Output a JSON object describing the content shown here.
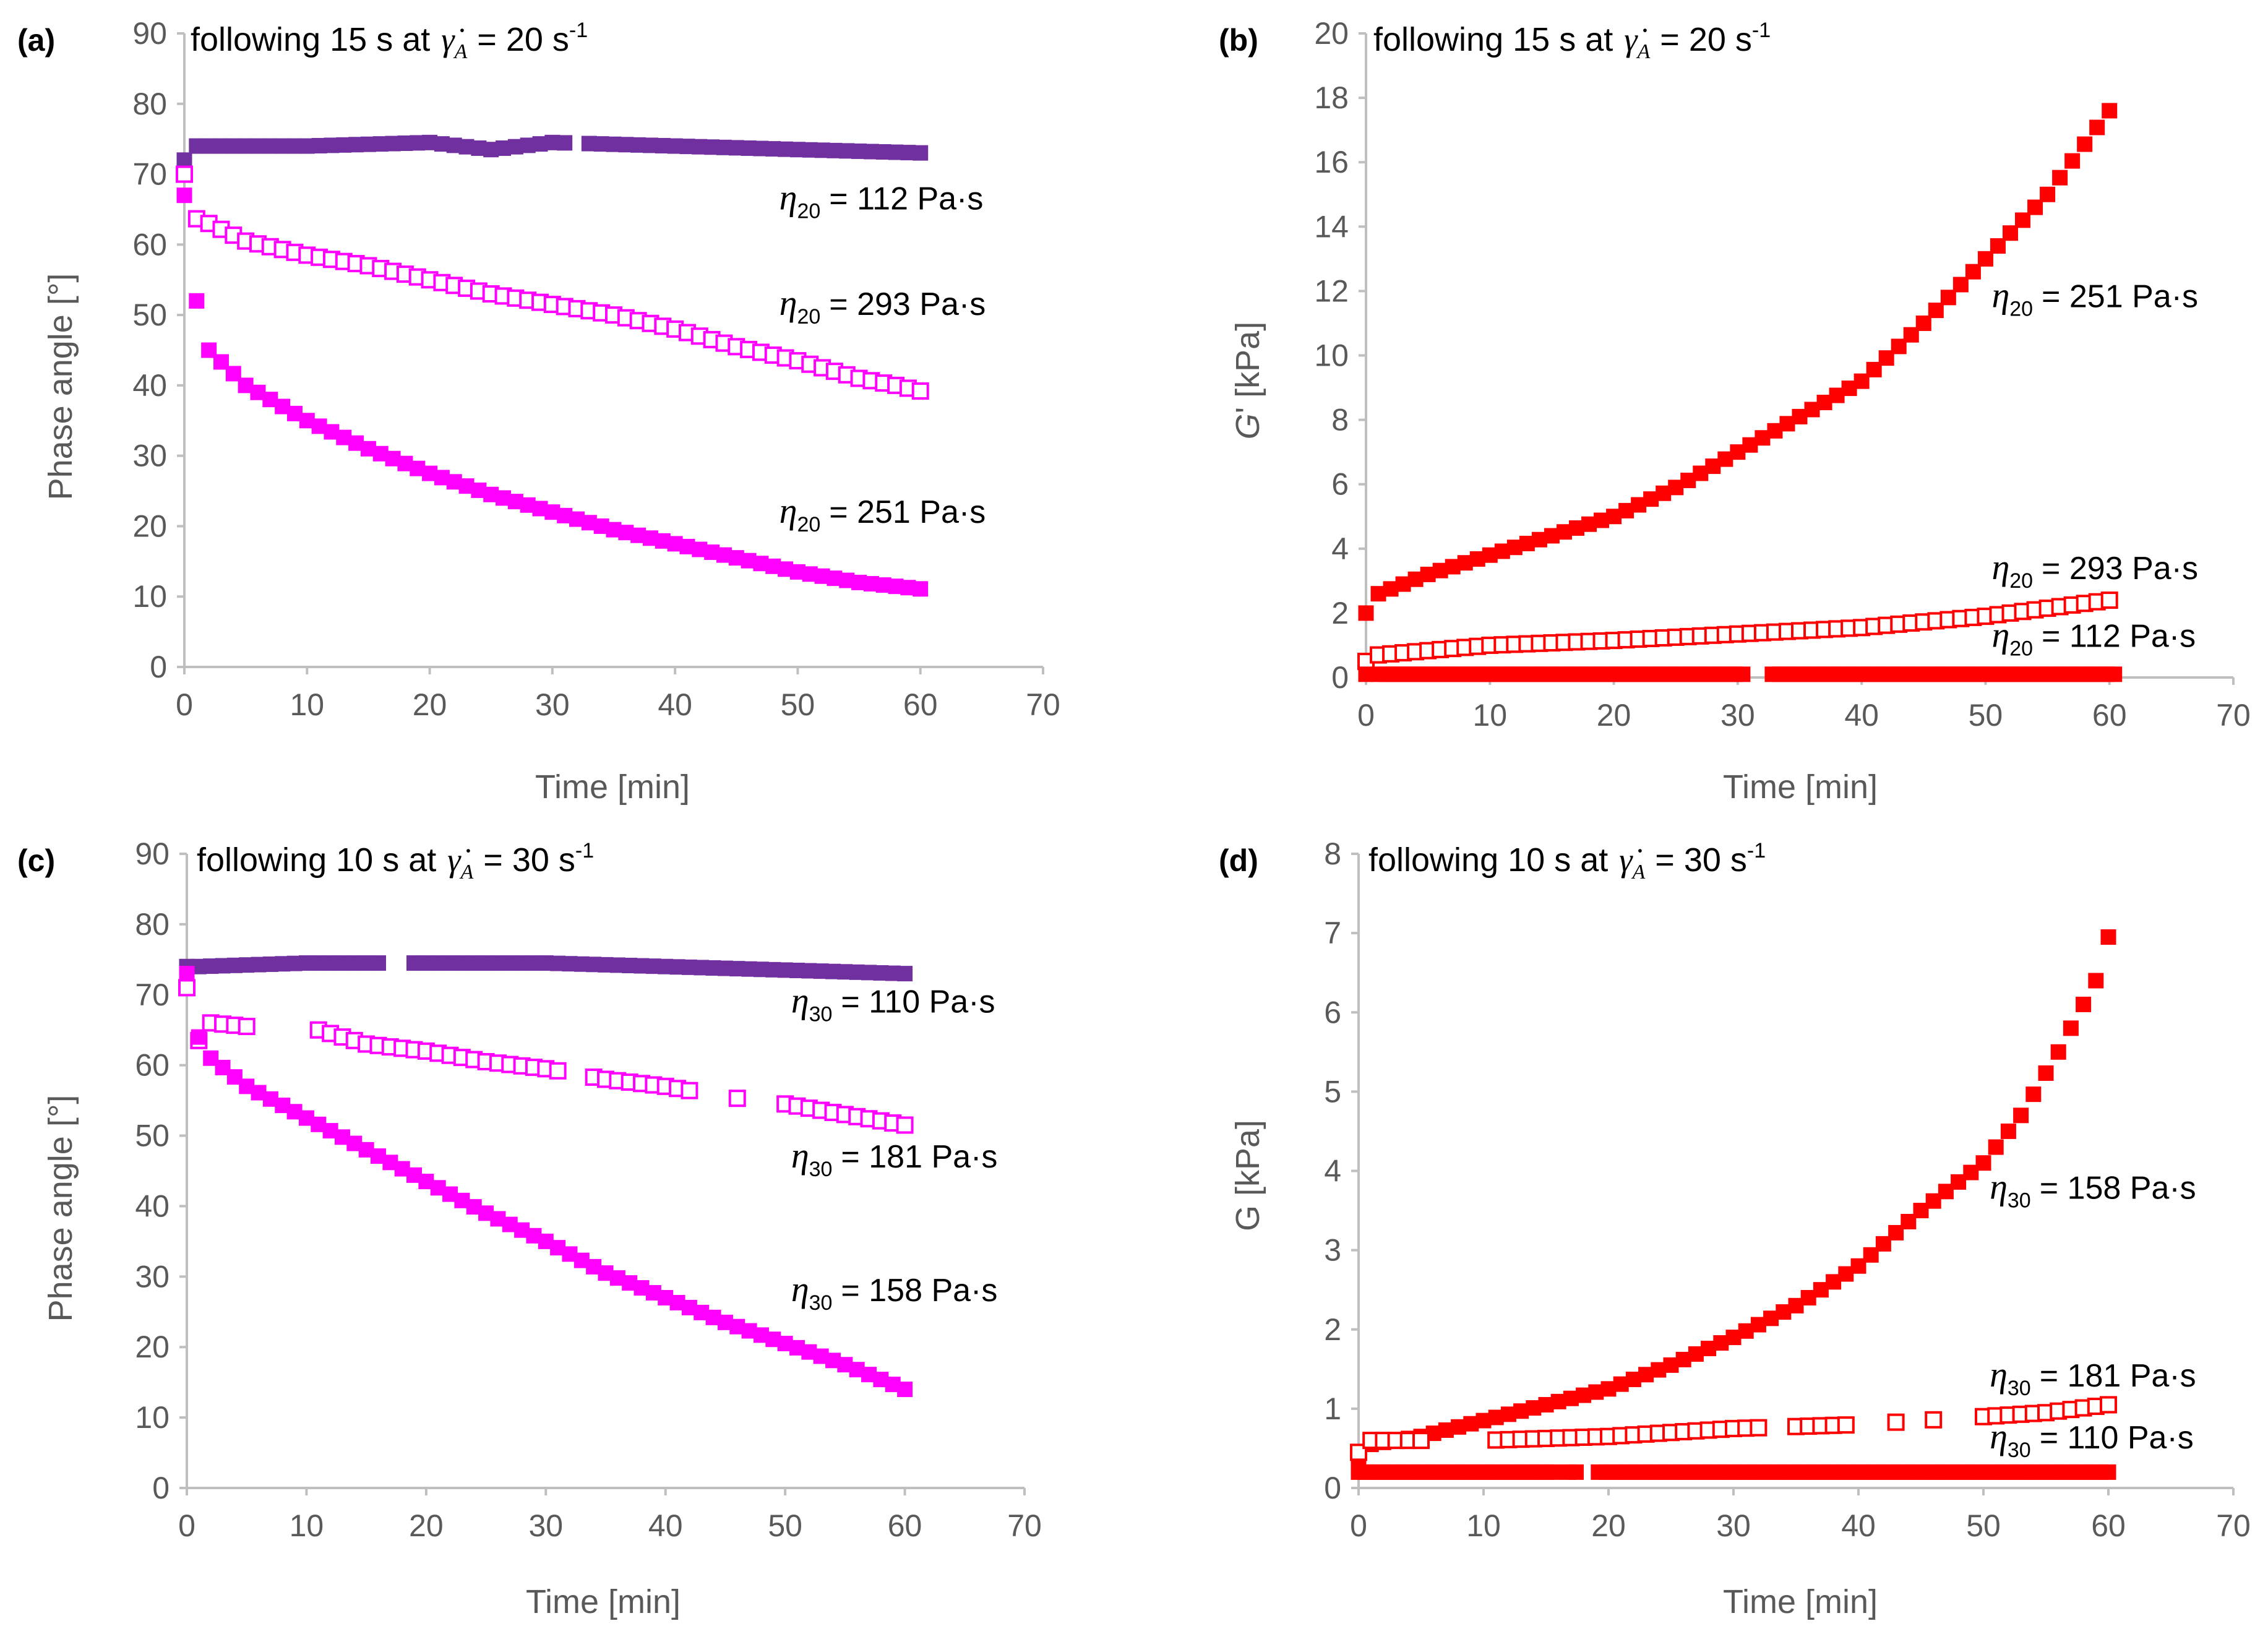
{
  "figure": {
    "panels": [
      {
        "letter": "(a)",
        "title_pre": "following 15 s at",
        "title_post": "= 20 s",
        "title_sup": "-1"
      },
      {
        "letter": "(b)",
        "title_pre": "following 15 s at",
        "title_post": "=  20 s",
        "title_sup": "-1"
      },
      {
        "letter": "(c)",
        "title_pre": "following 10 s at",
        "title_post": "=  30 s",
        "title_sup": "-1"
      },
      {
        "letter": "(d)",
        "title_pre": "following 10 s at",
        "title_post": "=  30 s",
        "title_sup": "-1"
      }
    ]
  },
  "colors": {
    "purple": "#7030a0",
    "magenta": "#ff00ff",
    "red": "#ff0000"
  },
  "chart_data": [
    {
      "type": "scatter",
      "panel": "(a)",
      "title": "following 15 s at γ̇A = 20 s-1",
      "xlabel": "Time [min]",
      "ylabel": "Phase angle [°]",
      "xlim": [
        0,
        70
      ],
      "xticks": [
        0,
        10,
        20,
        30,
        40,
        50,
        60,
        70
      ],
      "ylim": [
        0,
        90
      ],
      "yticks": [
        0,
        10,
        20,
        30,
        40,
        50,
        60,
        70,
        80,
        90
      ],
      "series": [
        {
          "name": "η20 = 112 Pa·s",
          "sub": "20",
          "value": "= 112 Pa·s",
          "color": "#7030a0",
          "filled": true,
          "x0": 0,
          "x1": 60.5,
          "step": 1,
          "points": [
            [
              0,
              72
            ],
            [
              1,
              74
            ],
            [
              10,
              74
            ],
            [
              20,
              74.5
            ],
            [
              25,
              73.5
            ],
            [
              30,
              74.5
            ],
            [
              40,
              74
            ],
            [
              50,
              73.5
            ],
            [
              60.5,
              73
            ]
          ],
          "gaps": [
            [
              31,
              33
            ],
            [
              38.5,
              39
            ]
          ]
        },
        {
          "name": "η20 = 293 Pa·s",
          "sub": "20",
          "value": "= 293 Pa·s",
          "color": "#ff00ff",
          "filled": false,
          "x0": 0,
          "x1": 60.5,
          "step": 1,
          "points": [
            [
              0,
              70
            ],
            [
              0.5,
              64
            ],
            [
              2,
              63
            ],
            [
              5,
              60.5
            ],
            [
              10,
              58.5
            ],
            [
              15,
              57
            ],
            [
              20,
              55
            ],
            [
              25,
              53
            ],
            [
              30,
              51.5
            ],
            [
              35,
              50
            ],
            [
              40,
              48
            ],
            [
              45,
              45.5
            ],
            [
              50,
              43.5
            ],
            [
              55,
              41
            ],
            [
              58,
              40
            ],
            [
              60.5,
              39
            ]
          ],
          "gaps": []
        },
        {
          "name": "η20 = 251 Pa·s",
          "sub": "20",
          "value": "= 251 Pa·s",
          "color": "#ff00ff",
          "filled": true,
          "x0": 1,
          "x1": 60.5,
          "step": 1,
          "points": [
            [
              0,
              67
            ],
            [
              1,
              52
            ],
            [
              2,
              45
            ],
            [
              5,
              40
            ],
            [
              10,
              35
            ],
            [
              15,
              31
            ],
            [
              20,
              27.5
            ],
            [
              25,
              24.5
            ],
            [
              30,
              22
            ],
            [
              35,
              19.5
            ],
            [
              40,
              17.5
            ],
            [
              45,
              15.5
            ],
            [
              50,
              13.5
            ],
            [
              55,
              12
            ],
            [
              60.5,
              11
            ]
          ],
          "gaps": [
            [
              1.2,
              1.8
            ]
          ]
        }
      ],
      "annotations": [
        {
          "series": 0,
          "x": 48.5,
          "y": 65
        },
        {
          "series": 1,
          "x": 48.5,
          "y": 50
        },
        {
          "series": 2,
          "x": 48.5,
          "y": 20.5
        }
      ]
    },
    {
      "type": "scatter",
      "panel": "(b)",
      "title": "following 15 s at γ̇A = 20 s-1",
      "xlabel": "Time [min]",
      "ylabel": "G' [kPa]",
      "xlim": [
        0,
        70
      ],
      "xticks": [
        0,
        10,
        20,
        30,
        40,
        50,
        60,
        70
      ],
      "ylim": [
        0,
        20
      ],
      "yticks": [
        0,
        2,
        4,
        6,
        8,
        10,
        12,
        14,
        16,
        18,
        20
      ],
      "series": [
        {
          "name": "η20 = 251 Pa·s",
          "sub": "20",
          "value": "= 251 Pa·s",
          "color": "#ff0000",
          "filled": true,
          "x0": 0,
          "x1": 60,
          "step": 1,
          "points": [
            [
              0,
              2
            ],
            [
              1,
              2.6
            ],
            [
              5,
              3.2
            ],
            [
              10,
              3.8
            ],
            [
              15,
              4.4
            ],
            [
              20,
              5
            ],
            [
              25,
              5.9
            ],
            [
              30,
              7
            ],
            [
              35,
              8.1
            ],
            [
              40,
              9.2
            ],
            [
              45,
              11
            ],
            [
              50,
              13
            ],
            [
              55,
              15
            ],
            [
              60,
              17.6
            ]
          ],
          "gaps": []
        },
        {
          "name": "η20 = 293 Pa·s",
          "sub": "20",
          "value": "= 293 Pa·s",
          "color": "#ff0000",
          "filled": false,
          "x0": 0,
          "x1": 60,
          "step": 1,
          "points": [
            [
              0,
              0.5
            ],
            [
              1,
              0.7
            ],
            [
              10,
              1
            ],
            [
              20,
              1.15
            ],
            [
              30,
              1.35
            ],
            [
              40,
              1.55
            ],
            [
              50,
              1.9
            ],
            [
              60,
              2.4
            ]
          ],
          "gaps": []
        },
        {
          "name": "η20 = 112 Pa·s",
          "sub": "20",
          "value": "= 112 Pa·s",
          "color": "#ff0000",
          "filled": true,
          "x0": 1,
          "x1": 60.5,
          "step": 0.6,
          "points": [
            [
              0,
              0.1
            ],
            [
              60.5,
              0.1
            ]
          ],
          "gaps": [
            [
              30.8,
              32.3
            ],
            [
              38.9,
              39.4
            ]
          ]
        }
      ],
      "annotations": [
        {
          "series": 0,
          "x": 50.5,
          "y": 11.5
        },
        {
          "series": 1,
          "x": 50.5,
          "y": 3.05
        },
        {
          "series": 2,
          "x": 50.5,
          "y": 0.95
        }
      ]
    },
    {
      "type": "scatter",
      "panel": "(c)",
      "title": "following 10 s at γ̇A = 30 s-1",
      "xlabel": "Time [min]",
      "ylabel": "Phase angle [°]",
      "xlim": [
        0,
        70
      ],
      "xticks": [
        0,
        10,
        20,
        30,
        40,
        50,
        60,
        70
      ],
      "ylim": [
        0,
        90
      ],
      "yticks": [
        0,
        10,
        20,
        30,
        40,
        50,
        60,
        70,
        80,
        90
      ],
      "series": [
        {
          "name": "η30 = 110 Pa·s",
          "sub": "30",
          "value": "= 110 Pa·s",
          "color": "#7030a0",
          "filled": true,
          "x0": 0,
          "x1": 60,
          "step": 1,
          "points": [
            [
              0,
              74
            ],
            [
              1,
              74
            ],
            [
              10,
              74.5
            ],
            [
              20,
              74.5
            ],
            [
              30,
              74.5
            ],
            [
              40,
              74
            ],
            [
              50,
              73.5
            ],
            [
              60,
              73
            ]
          ],
          "gaps": [
            [
              16,
              19
            ]
          ]
        },
        {
          "name": "η30 = 181 Pa·s",
          "sub": "30",
          "value": "= 181 Pa·s",
          "color": "#ff00ff",
          "filled": false,
          "x0": 0,
          "x1": 60,
          "step": 1,
          "points": [
            [
              0,
              71
            ],
            [
              1,
              63.5
            ],
            [
              2,
              66
            ],
            [
              5,
              65.5
            ],
            [
              11,
              65
            ],
            [
              15,
              63
            ],
            [
              20,
              62
            ],
            [
              25,
              60.5
            ],
            [
              30,
              59.5
            ],
            [
              35,
              58
            ],
            [
              40,
              57
            ],
            [
              45,
              55.5
            ],
            [
              50,
              54.5
            ],
            [
              55,
              53
            ],
            [
              60,
              51.5
            ]
          ],
          "gaps": [
            [
              5.5,
              10.5
            ],
            [
              31.5,
              33.5
            ],
            [
              36.5,
              37
            ],
            [
              42.5,
              45.5
            ],
            [
              46.5,
              49.5
            ]
          ]
        },
        {
          "name": "η30 = 158 Pa·s",
          "sub": "30",
          "value": "= 158 Pa·s",
          "color": "#ff00ff",
          "filled": true,
          "x0": 0,
          "x1": 60,
          "step": 1,
          "points": [
            [
              0,
              73
            ],
            [
              1,
              64
            ],
            [
              2,
              61
            ],
            [
              5,
              57
            ],
            [
              10,
              52.5
            ],
            [
              15,
              48
            ],
            [
              20,
              43.5
            ],
            [
              25,
              39
            ],
            [
              30,
              35
            ],
            [
              35,
              30.5
            ],
            [
              40,
              27
            ],
            [
              45,
              23.5
            ],
            [
              50,
              20.5
            ],
            [
              55,
              17.5
            ],
            [
              60,
              14
            ]
          ],
          "gaps": []
        }
      ],
      "annotations": [
        {
          "series": 0,
          "x": 50.5,
          "y": 67.5
        },
        {
          "series": 1,
          "x": 50.5,
          "y": 45.5
        },
        {
          "series": 2,
          "x": 50.5,
          "y": 26.5
        }
      ]
    },
    {
      "type": "scatter",
      "panel": "(d)",
      "title": "following 10 s at γ̇A = 30 s-1",
      "xlabel": "Time [min]",
      "ylabel": "G [kPa]",
      "xlim": [
        0,
        70
      ],
      "xticks": [
        0,
        10,
        20,
        30,
        40,
        50,
        60,
        70
      ],
      "ylim": [
        0,
        8
      ],
      "yticks": [
        0,
        1,
        2,
        3,
        4,
        5,
        6,
        7,
        8
      ],
      "series": [
        {
          "name": "η30 = 158 Pa·s",
          "sub": "30",
          "value": "= 158 Pa·s",
          "color": "#ff0000",
          "filled": true,
          "x0": 0,
          "x1": 60,
          "step": 1,
          "points": [
            [
              0,
              0.3
            ],
            [
              1,
              0.55
            ],
            [
              5,
              0.65
            ],
            [
              10,
              0.85
            ],
            [
              15,
              1.05
            ],
            [
              20,
              1.25
            ],
            [
              25,
              1.55
            ],
            [
              30,
              1.9
            ],
            [
              35,
              2.3
            ],
            [
              40,
              2.8
            ],
            [
              45,
              3.5
            ],
            [
              50,
              4.1
            ],
            [
              53,
              4.7
            ],
            [
              56,
              5.5
            ],
            [
              58,
              6.1
            ],
            [
              59,
              6.4
            ],
            [
              60,
              6.95
            ]
          ],
          "gaps": []
        },
        {
          "name": "η30 = 181 Pa·s",
          "sub": "30",
          "value": "= 181 Pa·s",
          "color": "#ff0000",
          "filled": false,
          "x0": 0,
          "x1": 60,
          "step": 1,
          "points": [
            [
              0,
              0.45
            ],
            [
              1,
              0.6
            ],
            [
              5,
              0.6
            ],
            [
              10,
              0.6
            ],
            [
              20,
              0.65
            ],
            [
              30,
              0.75
            ],
            [
              40,
              0.8
            ],
            [
              50,
              0.9
            ],
            [
              55,
              0.95
            ],
            [
              60,
              1.05
            ]
          ],
          "gaps": [
            [
              5.5,
              10.5
            ],
            [
              32.5,
              34.5
            ],
            [
              39.5,
              42.5
            ],
            [
              43.5,
              45.5
            ],
            [
              46.5,
              49.5
            ]
          ]
        },
        {
          "name": "η30 = 110 Pa·s",
          "sub": "30",
          "value": "= 110 Pa·s",
          "color": "#ff0000",
          "filled": true,
          "x0": 0,
          "x1": 60.5,
          "step": 0.6,
          "points": [
            [
              0,
              0.2
            ],
            [
              60.5,
              0.2
            ]
          ],
          "gaps": [
            [
              15.8,
              16.6
            ],
            [
              17.4,
              19.1
            ]
          ]
        }
      ],
      "annotations": [
        {
          "series": 0,
          "x": 50.5,
          "y": 3.65
        },
        {
          "series": 1,
          "x": 50.5,
          "y": 1.28
        },
        {
          "series": 2,
          "x": 50.5,
          "y": 0.5
        }
      ]
    }
  ]
}
